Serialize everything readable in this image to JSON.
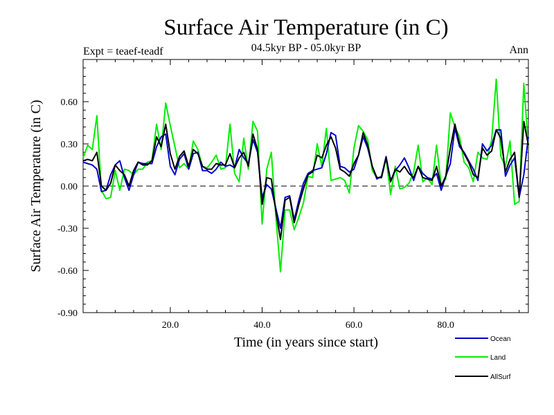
{
  "chart_data": {
    "type": "line",
    "title": "Surface Air Temperature (in C)",
    "subtitle": "04.5kyr BP - 05.0kyr BP",
    "left_note": "Expt = teaef-teadf",
    "right_note": "Ann",
    "xlabel": "Time (in years since start)",
    "ylabel": "Surface Air Temperature (in C)",
    "xlim": [
      1,
      98
    ],
    "ylim": [
      -0.9,
      0.9
    ],
    "x_ticks": [
      20,
      40,
      60,
      80
    ],
    "x_tick_labels": [
      "20.0",
      "40.0",
      "60.0",
      "80.0"
    ],
    "y_ticks": [
      -0.9,
      -0.6,
      -0.3,
      0.0,
      0.3,
      0.6
    ],
    "y_tick_labels": [
      "-0.90",
      "-0.60",
      "-0.30",
      "0.00",
      "0.30",
      "0.60"
    ],
    "reference_line": 0.0,
    "x": [
      1,
      2,
      3,
      4,
      5,
      6,
      7,
      8,
      9,
      10,
      11,
      12,
      13,
      14,
      15,
      16,
      17,
      18,
      19,
      20,
      21,
      22,
      23,
      24,
      25,
      26,
      27,
      28,
      29,
      30,
      31,
      32,
      33,
      34,
      35,
      36,
      37,
      38,
      39,
      40,
      41,
      42,
      43,
      44,
      45,
      46,
      47,
      48,
      49,
      50,
      51,
      52,
      53,
      54,
      55,
      56,
      57,
      58,
      59,
      60,
      61,
      62,
      63,
      64,
      65,
      66,
      67,
      68,
      69,
      70,
      71,
      72,
      73,
      74,
      75,
      76,
      77,
      78,
      79,
      80,
      81,
      82,
      83,
      84,
      85,
      86,
      87,
      88,
      89,
      90,
      91,
      92,
      93,
      94,
      95,
      96,
      97,
      98
    ],
    "series": [
      {
        "name": "Ocean",
        "color": "#0000cc",
        "values": [
          0.17,
          0.16,
          0.15,
          0.12,
          -0.04,
          -0.03,
          0.08,
          0.15,
          0.18,
          0.06,
          -0.03,
          0.08,
          0.17,
          0.16,
          0.16,
          0.16,
          0.28,
          0.35,
          0.37,
          0.14,
          0.08,
          0.19,
          0.23,
          0.12,
          0.23,
          0.24,
          0.11,
          0.11,
          0.09,
          0.12,
          0.17,
          0.14,
          0.15,
          0.13,
          0.26,
          0.2,
          0.16,
          0.33,
          0.24,
          -0.08,
          0.01,
          -0.02,
          -0.16,
          -0.3,
          -0.08,
          -0.07,
          -0.24,
          -0.1,
          0.02,
          0.09,
          0.11,
          0.12,
          0.13,
          0.23,
          0.38,
          0.36,
          0.14,
          0.13,
          0.1,
          0.12,
          0.22,
          0.35,
          0.27,
          0.14,
          0.05,
          0.07,
          0.21,
          0.04,
          0.11,
          0.15,
          0.2,
          0.13,
          0.04,
          0.14,
          0.09,
          0.06,
          0.05,
          0.09,
          -0.03,
          0.07,
          0.16,
          0.41,
          0.28,
          0.24,
          0.18,
          0.12,
          0.04,
          0.3,
          0.25,
          0.29,
          0.4,
          0.4,
          0.07,
          0.15,
          0.2,
          -0.08,
          0.08,
          0.35
        ]
      },
      {
        "name": "Land",
        "color": "#00ee00",
        "values": [
          0.2,
          0.29,
          0.26,
          0.5,
          -0.03,
          -0.09,
          -0.08,
          0.11,
          -0.03,
          0.12,
          0.11,
          0.08,
          0.12,
          0.12,
          0.17,
          0.18,
          0.44,
          0.26,
          0.59,
          0.43,
          0.28,
          0.13,
          0.16,
          0.12,
          0.32,
          0.26,
          0.14,
          0.13,
          0.17,
          0.22,
          0.12,
          0.13,
          0.44,
          0.09,
          0.03,
          0.34,
          0.12,
          0.46,
          0.39,
          -0.27,
          0.12,
          0.24,
          -0.22,
          -0.61,
          -0.17,
          -0.17,
          -0.31,
          -0.22,
          -0.12,
          0.07,
          0.06,
          0.3,
          0.14,
          0.41,
          0.04,
          0.05,
          0.06,
          0.04,
          -0.05,
          0.27,
          0.43,
          0.39,
          0.33,
          0.11,
          0.06,
          0.06,
          0.2,
          -0.06,
          0.14,
          -0.02,
          -0.01,
          0.02,
          0.1,
          0.29,
          0.03,
          0.06,
          0.01,
          0.29,
          0.01,
          0.05,
          0.52,
          0.42,
          0.35,
          0.17,
          0.13,
          0.03,
          0.24,
          0.2,
          0.19,
          0.33,
          0.76,
          0.21,
          0.14,
          0.32,
          -0.13,
          -0.11,
          0.73,
          0.28
        ]
      },
      {
        "name": "AllSurf",
        "color": "#000000",
        "values": [
          0.18,
          0.19,
          0.18,
          0.24,
          0.0,
          -0.03,
          0.02,
          0.15,
          0.11,
          0.08,
          0.0,
          0.11,
          0.17,
          0.15,
          0.15,
          0.18,
          0.35,
          0.28,
          0.44,
          0.23,
          0.12,
          0.21,
          0.25,
          0.14,
          0.26,
          0.23,
          0.14,
          0.12,
          0.12,
          0.16,
          0.15,
          0.15,
          0.23,
          0.13,
          0.2,
          0.24,
          0.14,
          0.37,
          0.26,
          -0.13,
          0.06,
          0.05,
          -0.18,
          -0.38,
          -0.1,
          -0.08,
          -0.26,
          -0.13,
          -0.02,
          0.08,
          0.1,
          0.22,
          0.2,
          0.29,
          0.35,
          0.27,
          0.12,
          0.1,
          0.07,
          0.16,
          0.22,
          0.38,
          0.29,
          0.14,
          0.06,
          0.06,
          0.2,
          0.03,
          0.12,
          0.1,
          0.14,
          0.09,
          0.06,
          0.14,
          0.06,
          0.05,
          0.04,
          0.14,
          0.0,
          0.07,
          0.27,
          0.44,
          0.3,
          0.23,
          0.17,
          0.08,
          0.06,
          0.27,
          0.22,
          0.25,
          0.4,
          0.34,
          0.1,
          0.19,
          0.24,
          -0.08,
          0.46,
          0.29
        ]
      }
    ],
    "legend": {
      "position": "bottom-right",
      "entries": [
        "Ocean",
        "Land",
        "AllSurf"
      ]
    }
  }
}
